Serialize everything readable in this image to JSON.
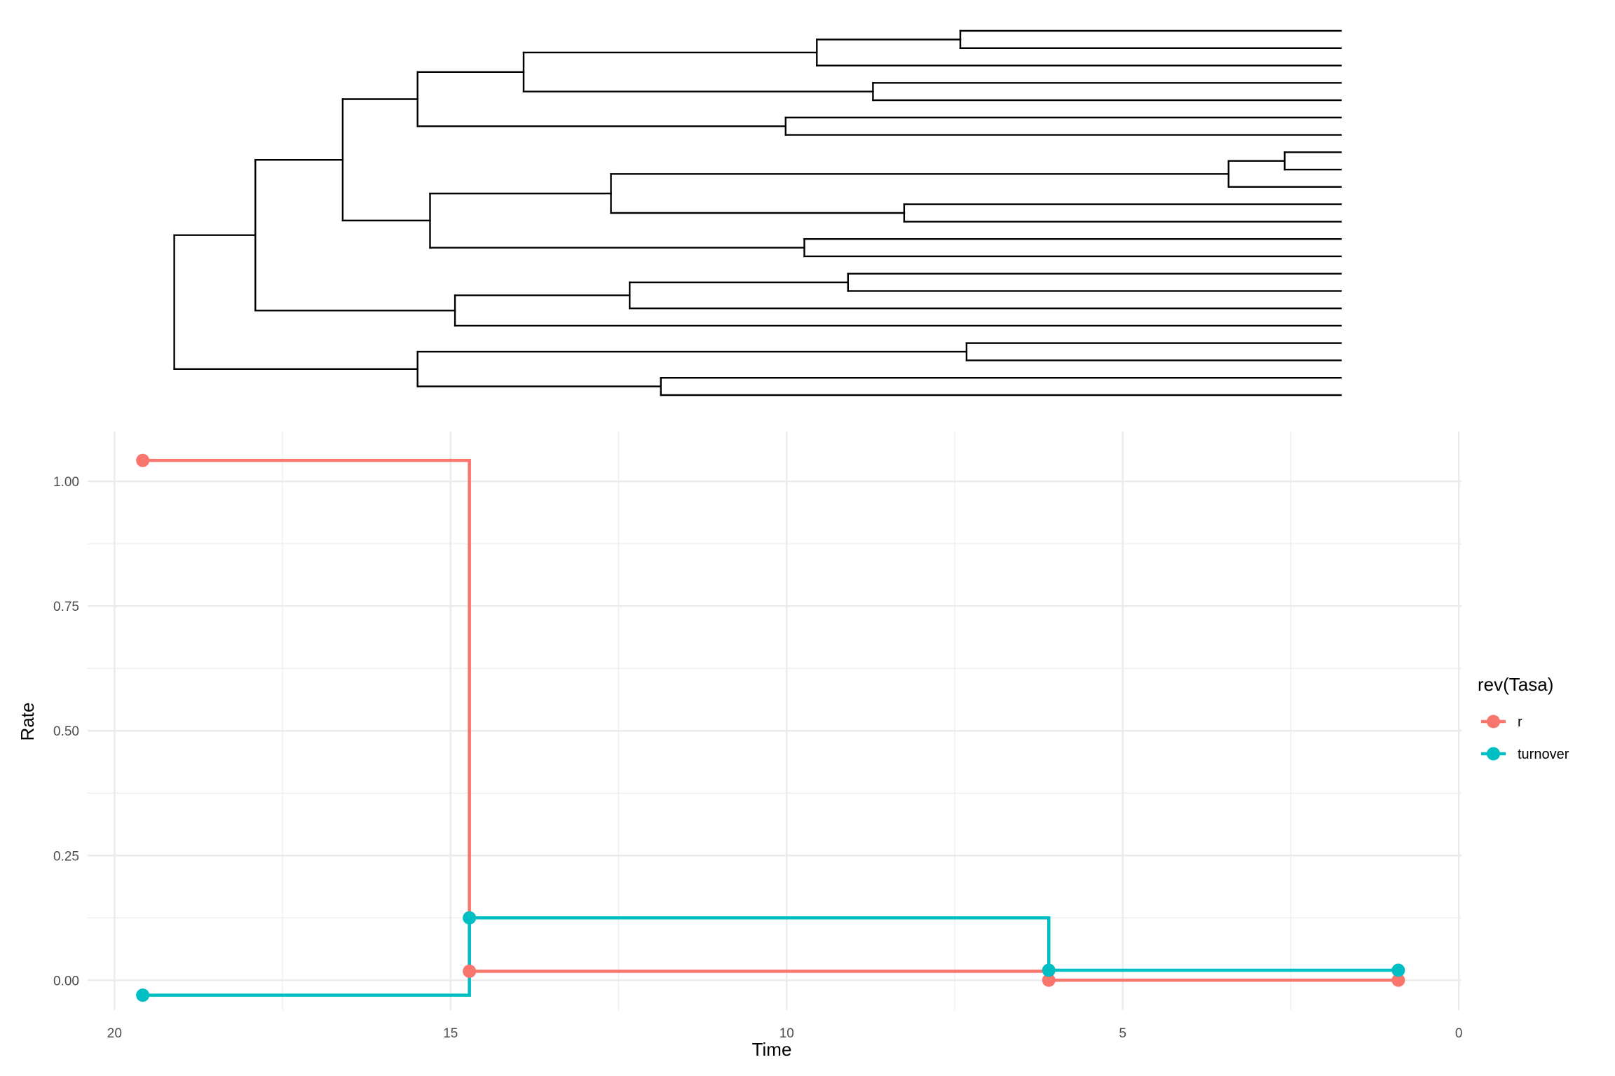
{
  "chart_data": [
    {
      "type": "dendrogram",
      "tree": [
        [
          [
            [
              [
                [
                  [
                    "t",
                    "t"
                  ],
                  "t"
                ],
                [
                  "t",
                  "t"
                ]
              ],
              [
                "t",
                "t"
              ]
            ],
            [
              [
                [
                  [
                    "t",
                    "t"
                  ],
                  "t"
                ],
                [
                  "t",
                  "t"
                ]
              ],
              [
                "t",
                "t"
              ]
            ]
          ],
          [
            [
              [
                "t",
                "t"
              ],
              "t"
            ],
            "t"
          ]
        ],
        [
          [
            "t",
            "t"
          ],
          [
            "t",
            "t"
          ]
        ]
      ],
      "node_ages": [
        19.6,
        18.3,
        16.9,
        15.7,
        14.0,
        9.3,
        7.0,
        8.4,
        9.8,
        15.5,
        12.6,
        2.7,
        1.8,
        7.9,
        9.5,
        15.1,
        12.3,
        8.8,
        15.7,
        6.9,
        11.8
      ],
      "xlim": [
        20.0,
        0.0
      ],
      "tip_age": 0.9
    },
    {
      "type": "line",
      "step": "hv",
      "xlabel": "Time",
      "ylabel": "Rate",
      "xlim": [
        20.4,
        -0.04
      ],
      "ylim": [
        -0.06,
        1.1
      ],
      "x_ticks": [
        "20",
        "15",
        "10",
        "5",
        "0"
      ],
      "x_tick_values": [
        20,
        15,
        10,
        5,
        0
      ],
      "y_ticks": [
        "0.00",
        "0.25",
        "0.50",
        "0.75",
        "1.00"
      ],
      "y_tick_values": [
        0,
        0.25,
        0.5,
        0.75,
        1.0
      ],
      "grid": true,
      "legend_title": "rev(Tasa)",
      "legend_position": "right",
      "series": [
        {
          "name": "r",
          "color": "#F8766D",
          "x": [
            19.58,
            14.72,
            6.1,
            0.9
          ],
          "y": [
            1.042,
            0.018,
            0.0,
            0.0
          ]
        },
        {
          "name": "turnover",
          "color": "#00BFC4",
          "x": [
            19.58,
            14.72,
            6.1,
            0.9
          ],
          "y": [
            -0.03,
            0.125,
            0.02,
            0.02
          ]
        }
      ]
    }
  ]
}
